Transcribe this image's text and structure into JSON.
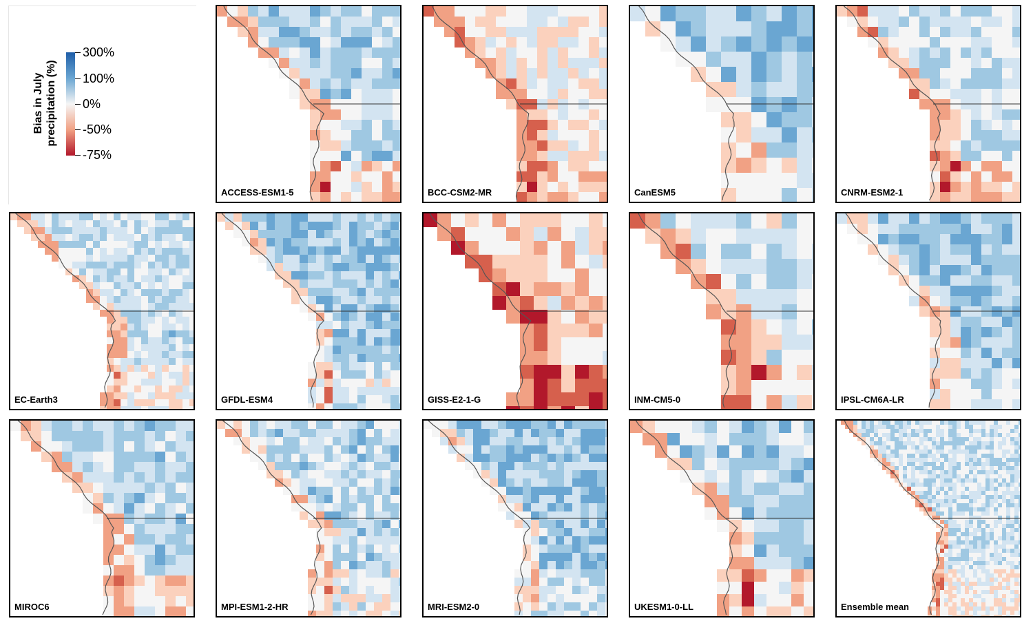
{
  "legend": {
    "title_line1": "Bias in July",
    "title_line2": "precipitation (%)",
    "ticks": [
      "300%",
      "100%",
      "0%",
      "-50%",
      "-75%"
    ]
  },
  "colors": {
    "strong_positive": "#1f5ea8",
    "positive": "#6aa6d2",
    "neutral": "#f5f5f5",
    "negative": "#f1a184",
    "strong_negative": "#b2182b"
  },
  "panels": [
    {
      "label": "ACCESS-ESM1-5"
    },
    {
      "label": "BCC-CSM2-MR"
    },
    {
      "label": "CanESM5"
    },
    {
      "label": "CNRM-ESM2-1"
    },
    {
      "label": "EC-Earth3"
    },
    {
      "label": "GFDL-ESM4"
    },
    {
      "label": "GISS-E2-1-G"
    },
    {
      "label": "INM-CM5-0"
    },
    {
      "label": "IPSL-CM6A-LR"
    },
    {
      "label": "MIROC6"
    },
    {
      "label": "MPI-ESM1-2-HR"
    },
    {
      "label": "MRI-ESM2-0"
    },
    {
      "label": "UKESM1-0-LL"
    },
    {
      "label": "Ensemble mean"
    }
  ]
}
